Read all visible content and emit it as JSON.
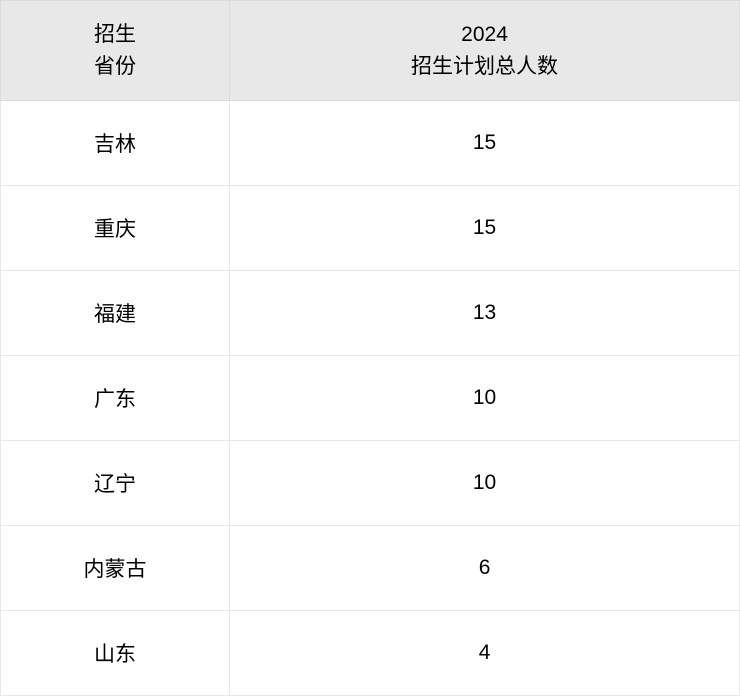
{
  "table": {
    "type": "table",
    "header_bg": "#e8e8e8",
    "cell_bg": "#ffffff",
    "border_color": "#e8e8e8",
    "header_border_color": "#dcdcdc",
    "font_size": 21,
    "text_color": "#000000",
    "columns": [
      {
        "label_line1": "招生",
        "label_line2": "省份",
        "width_pct": 31
      },
      {
        "label_line1": "2024",
        "label_line2": "招生计划总人数",
        "width_pct": 69
      }
    ],
    "rows": [
      {
        "province": "吉林",
        "count": "15"
      },
      {
        "province": "重庆",
        "count": "15"
      },
      {
        "province": "福建",
        "count": "13"
      },
      {
        "province": "广东",
        "count": "10"
      },
      {
        "province": "辽宁",
        "count": "10"
      },
      {
        "province": "内蒙古",
        "count": "6"
      },
      {
        "province": "山东",
        "count": "4"
      }
    ]
  }
}
